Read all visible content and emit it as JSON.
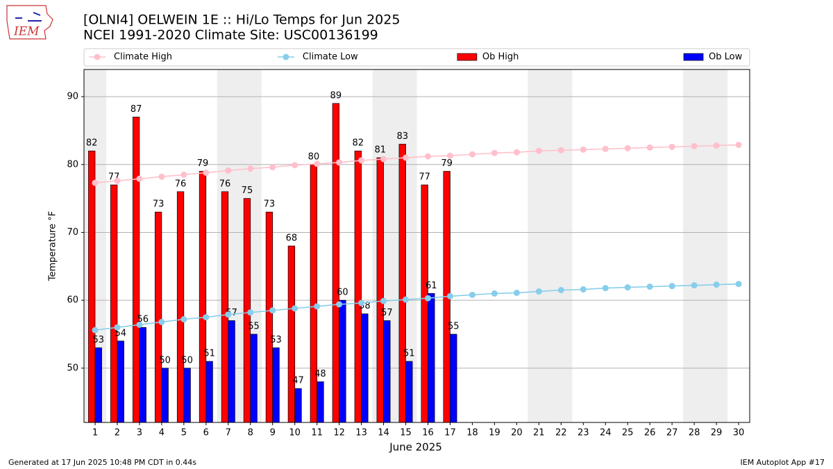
{
  "chart_data": {
    "type": "bar",
    "title": "[OLNI4] OELWEIN 1E :: Hi/Lo Temps for Jun 2025",
    "subtitle": "NCEI 1991-2020 Climate Site: USC00136199",
    "logo_text": "IEM",
    "x_label": "June 2025",
    "y_label": "Temperature °F",
    "footer_left": "Generated at 17 Jun 2025 10:48 PM CDT in 0.44s",
    "footer_right": "IEM Autoplot App #17",
    "x": [
      1,
      2,
      3,
      4,
      5,
      6,
      7,
      8,
      9,
      10,
      11,
      12,
      13,
      14,
      15,
      16,
      17,
      18,
      19,
      20,
      21,
      22,
      23,
      24,
      25,
      26,
      27,
      28,
      29,
      30
    ],
    "xlim": [
      0.5,
      30.5
    ],
    "ylim": [
      42,
      94
    ],
    "yticks": [
      50,
      60,
      70,
      80,
      90
    ],
    "grid": true,
    "shaded_x": [
      1,
      7,
      8,
      14,
      15,
      21,
      22,
      28,
      29
    ],
    "shade_color": "#eeeeee",
    "series": [
      {
        "name": "Climate High",
        "type": "line",
        "color": "#ffc0cb",
        "values": [
          77.3,
          77.6,
          77.9,
          78.2,
          78.5,
          78.8,
          79.1,
          79.4,
          79.6,
          79.9,
          80.1,
          80.3,
          80.6,
          80.8,
          81.0,
          81.2,
          81.3,
          81.5,
          81.7,
          81.8,
          82.0,
          82.1,
          82.2,
          82.3,
          82.4,
          82.5,
          82.6,
          82.7,
          82.8,
          82.9
        ]
      },
      {
        "name": "Climate Low",
        "type": "line",
        "color": "#87ceeb",
        "values": [
          55.6,
          56.0,
          56.4,
          56.8,
          57.2,
          57.5,
          57.9,
          58.2,
          58.5,
          58.8,
          59.1,
          59.4,
          59.6,
          59.9,
          60.1,
          60.3,
          60.6,
          60.8,
          61.0,
          61.1,
          61.3,
          61.5,
          61.6,
          61.8,
          61.9,
          62.0,
          62.1,
          62.2,
          62.3,
          62.4
        ]
      },
      {
        "name": "Ob High",
        "type": "bar",
        "color": "#ff0000",
        "values": [
          82,
          77,
          87,
          73,
          76,
          79,
          76,
          75,
          73,
          68,
          80,
          89,
          82,
          81,
          83,
          77,
          79,
          null,
          null,
          null,
          null,
          null,
          null,
          null,
          null,
          null,
          null,
          null,
          null,
          null
        ]
      },
      {
        "name": "Ob Low",
        "type": "bar",
        "color": "#0000ff",
        "values": [
          53,
          54,
          56,
          50,
          50,
          51,
          57,
          55,
          53,
          47,
          48,
          60,
          58,
          57,
          51,
          61,
          55,
          null,
          null,
          null,
          null,
          null,
          null,
          null,
          null,
          null,
          null,
          null,
          null,
          null
        ]
      }
    ]
  }
}
